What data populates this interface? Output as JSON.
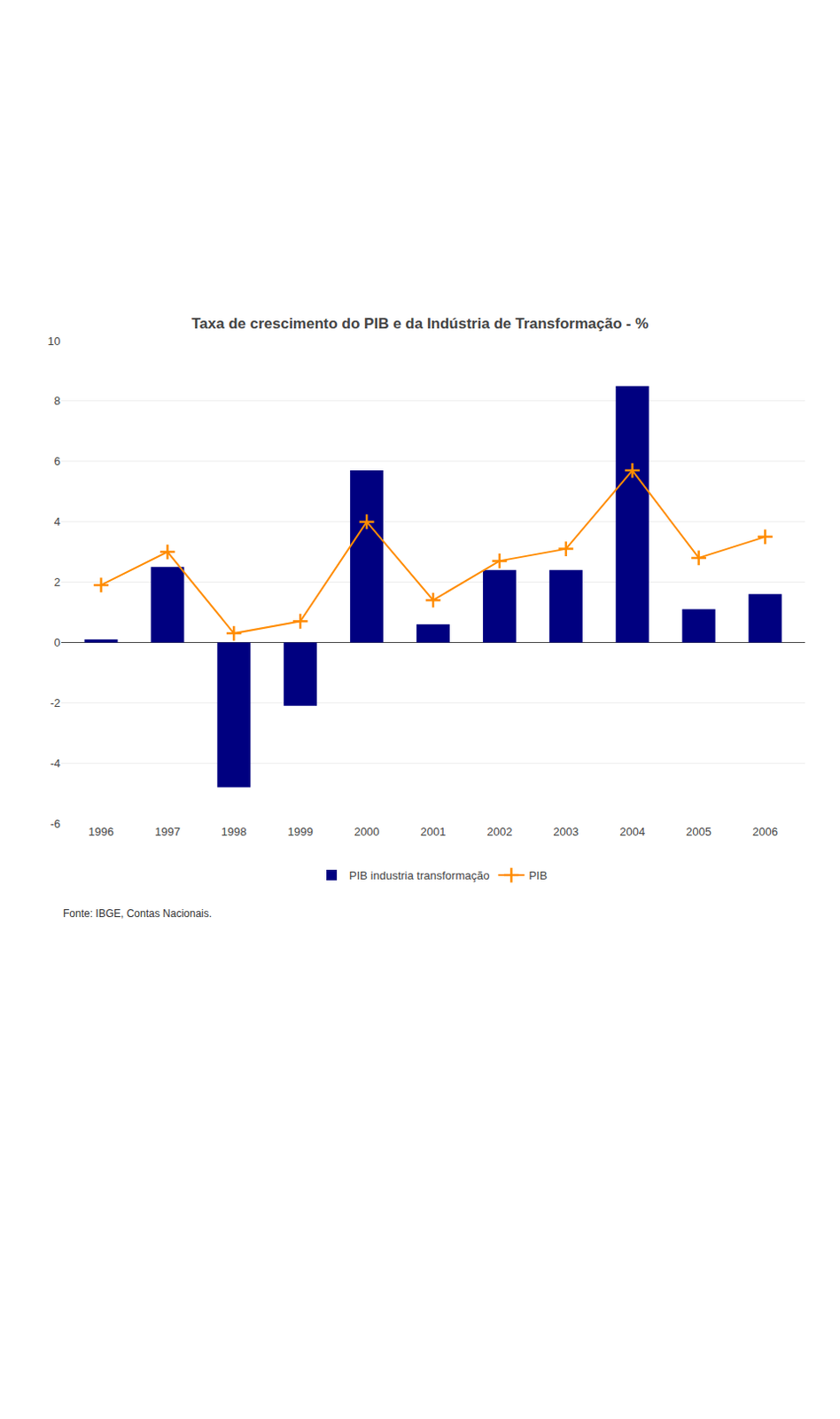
{
  "chart_data": {
    "type": "bar",
    "title": "Taxa de crescimento do PIB e da Indústria de Transformação - %",
    "categories": [
      "1996",
      "1997",
      "1998",
      "1999",
      "2000",
      "2001",
      "2002",
      "2003",
      "2004",
      "2005",
      "2006"
    ],
    "series": [
      {
        "name": "PIB industria transformação",
        "type": "bar",
        "color": "#000080",
        "values": [
          0.1,
          2.5,
          -4.8,
          -2.1,
          5.7,
          0.6,
          2.4,
          2.4,
          8.5,
          1.1,
          1.6
        ]
      },
      {
        "name": "PIB",
        "type": "line",
        "color": "#FF8C00",
        "marker": "cross",
        "line_style": "solid",
        "values": [
          1.9,
          3.0,
          0.3,
          0.7,
          4.0,
          1.4,
          2.7,
          3.1,
          5.7,
          2.8,
          3.5
        ]
      }
    ],
    "ylim": [
      -6,
      10
    ],
    "yticks": [
      -6,
      -4,
      -2,
      0,
      2,
      4,
      6,
      8,
      10
    ],
    "grid": true,
    "legend": "bottom",
    "annotations": [
      "Fonte: IBGE, Contas Nacionais."
    ]
  }
}
